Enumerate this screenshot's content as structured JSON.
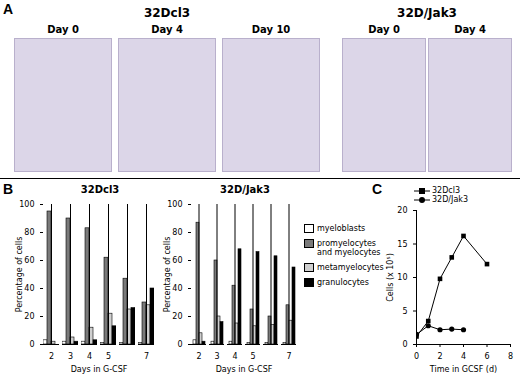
{
  "micrographs": {
    "panel": "A",
    "groups": [
      {
        "title": "32Dcl3",
        "images": [
          "Day 0",
          "Day 4",
          "Day 10"
        ]
      },
      {
        "title": "32D/Jak3",
        "images": [
          "Day 0",
          "Day 4"
        ]
      }
    ]
  },
  "chart_data": [
    {
      "type": "bar",
      "panel": "B",
      "title": "32Dcl3",
      "categories": [
        "2",
        "3",
        "4",
        "5",
        null,
        "7"
      ],
      "x_label": "Days in G-CSF",
      "y_label": "Percentage of cells",
      "ylim": [
        0,
        100
      ],
      "yticks": [
        0,
        20,
        40,
        60,
        80,
        100
      ],
      "legend": "right",
      "series": [
        {
          "name": "myeloblasts",
          "color": "#ffffff",
          "values": [
            3,
            2,
            2,
            1,
            1,
            1
          ]
        },
        {
          "name": "promyelocytes and myelocytes",
          "color": "#7a7a7a",
          "values": [
            95,
            90,
            83,
            62,
            47,
            30
          ]
        },
        {
          "name": "metamyelocytes",
          "color": "#cfcfcf",
          "values": [
            2,
            5,
            12,
            22,
            25,
            28
          ]
        },
        {
          "name": "granulocytes",
          "color": "#000000",
          "values": [
            0,
            2,
            3,
            13,
            26,
            40
          ]
        }
      ]
    },
    {
      "type": "bar",
      "title": "32D/Jak3",
      "categories": [
        "2",
        "3",
        "4",
        "5",
        null,
        "7"
      ],
      "x_label": "Days in G-CSF",
      "y_label": "Percentage of cells",
      "ylim": [
        0,
        100
      ],
      "yticks": [
        0,
        20,
        40,
        60,
        80,
        100
      ],
      "legend": "right",
      "series": [
        {
          "name": "myeloblasts",
          "color": "#ffffff",
          "values": [
            3,
            2,
            2,
            1,
            1,
            1
          ]
        },
        {
          "name": "promyelocytes and myelocytes",
          "color": "#7a7a7a",
          "values": [
            87,
            60,
            42,
            25,
            20,
            28
          ]
        },
        {
          "name": "metamyelocytes",
          "color": "#cfcfcf",
          "values": [
            8,
            20,
            15,
            13,
            14,
            17
          ]
        },
        {
          "name": "granulocytes",
          "color": "#000000",
          "values": [
            2,
            16,
            68,
            66,
            63,
            55
          ]
        }
      ]
    },
    {
      "type": "line",
      "panel": "C",
      "x_label": "Time in GCSF (d)",
      "y_label": "Cells (x 10⁵)",
      "xlim": [
        0,
        8
      ],
      "xticks": [
        0,
        2,
        4,
        6,
        8
      ],
      "ylim": [
        0,
        20
      ],
      "yticks": [
        0,
        5,
        10,
        15,
        20
      ],
      "legend": "top",
      "series": [
        {
          "name": "32Dcl3",
          "color": "#000000",
          "marker": "square",
          "x": [
            0,
            1,
            2,
            3,
            4,
            6
          ],
          "values": [
            1.2,
            3.5,
            9.8,
            13,
            16.2,
            12
          ]
        },
        {
          "name": "32D/Jak3",
          "color": "#000000",
          "marker": "circle",
          "x": [
            0,
            1,
            2,
            3,
            4
          ],
          "values": [
            1.5,
            2.8,
            2.2,
            2.3,
            2.2
          ]
        }
      ]
    }
  ]
}
